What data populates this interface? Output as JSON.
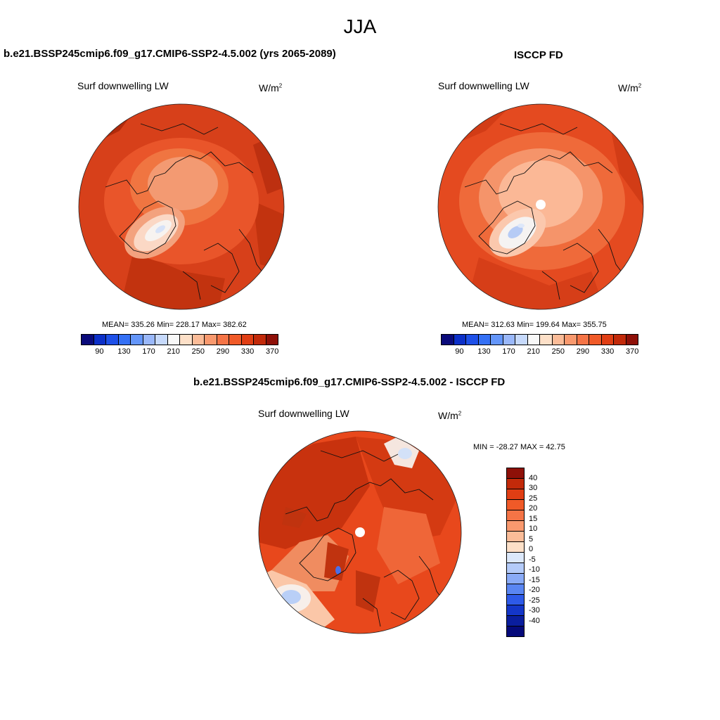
{
  "figure": {
    "title": "JJA"
  },
  "panels": [
    {
      "title": "b.e21.BSSP245cmip6.f09_g17.CMIP6-SSP2-4.5.002 (yrs 2065-2089)",
      "left_label": "Surf downwelling LW",
      "units": "W/m",
      "units_sup": "2",
      "stats": "MEAN= 335.26  Min= 228.17  Max= 382.62",
      "colorbar": {
        "colors": [
          "#0a0a7a",
          "#0c30c8",
          "#1e50e8",
          "#3470f5",
          "#6496fa",
          "#9ab8fa",
          "#c6d9fb",
          "#f8f8f8",
          "#fde0c8",
          "#fbbc98",
          "#f9996e",
          "#f57446",
          "#f05a28",
          "#e03e14",
          "#c22a0a",
          "#8e1008"
        ],
        "labels": [
          "90",
          "130",
          "170",
          "210",
          "250",
          "290",
          "330",
          "370"
        ]
      }
    },
    {
      "title": "ISCCP FD",
      "left_label": "Surf downwelling LW",
      "units": "W/m",
      "units_sup": "2",
      "stats": "MEAN= 312.63  Min= 199.64  Max= 355.75",
      "colorbar": {
        "colors": [
          "#0a0a7a",
          "#0c30c8",
          "#1e50e8",
          "#3470f5",
          "#6496fa",
          "#9ab8fa",
          "#c6d9fb",
          "#f8f8f8",
          "#fde0c8",
          "#fbbc98",
          "#f9996e",
          "#f57446",
          "#f05a28",
          "#e03e14",
          "#c22a0a",
          "#8e1008"
        ],
        "labels": [
          "90",
          "130",
          "170",
          "210",
          "250",
          "290",
          "330",
          "370"
        ]
      }
    },
    {
      "title": "b.e21.BSSP245cmip6.f09_g17.CMIP6-SSP2-4.5.002 - ISCCP FD",
      "left_label": "Surf downwelling LW",
      "units": "W/m",
      "units_sup": "2",
      "stats": "MIN = -28.27 MAX =  42.75",
      "colorbar": {
        "colors": [
          "#8e1008",
          "#c22a0a",
          "#e03e14",
          "#f05a28",
          "#f57446",
          "#f9996e",
          "#fbbc98",
          "#fde0c8",
          "#dce8fa",
          "#b4cbf9",
          "#8aabf7",
          "#5a86f2",
          "#2e5ae8",
          "#1436c8",
          "#0a1e9e",
          "#050a7a"
        ],
        "labels": [
          "40",
          "30",
          "25",
          "20",
          "15",
          "10",
          "5",
          "0",
          "-5",
          "-10",
          "-15",
          "-20",
          "-25",
          "-30",
          "-40"
        ]
      }
    }
  ]
}
